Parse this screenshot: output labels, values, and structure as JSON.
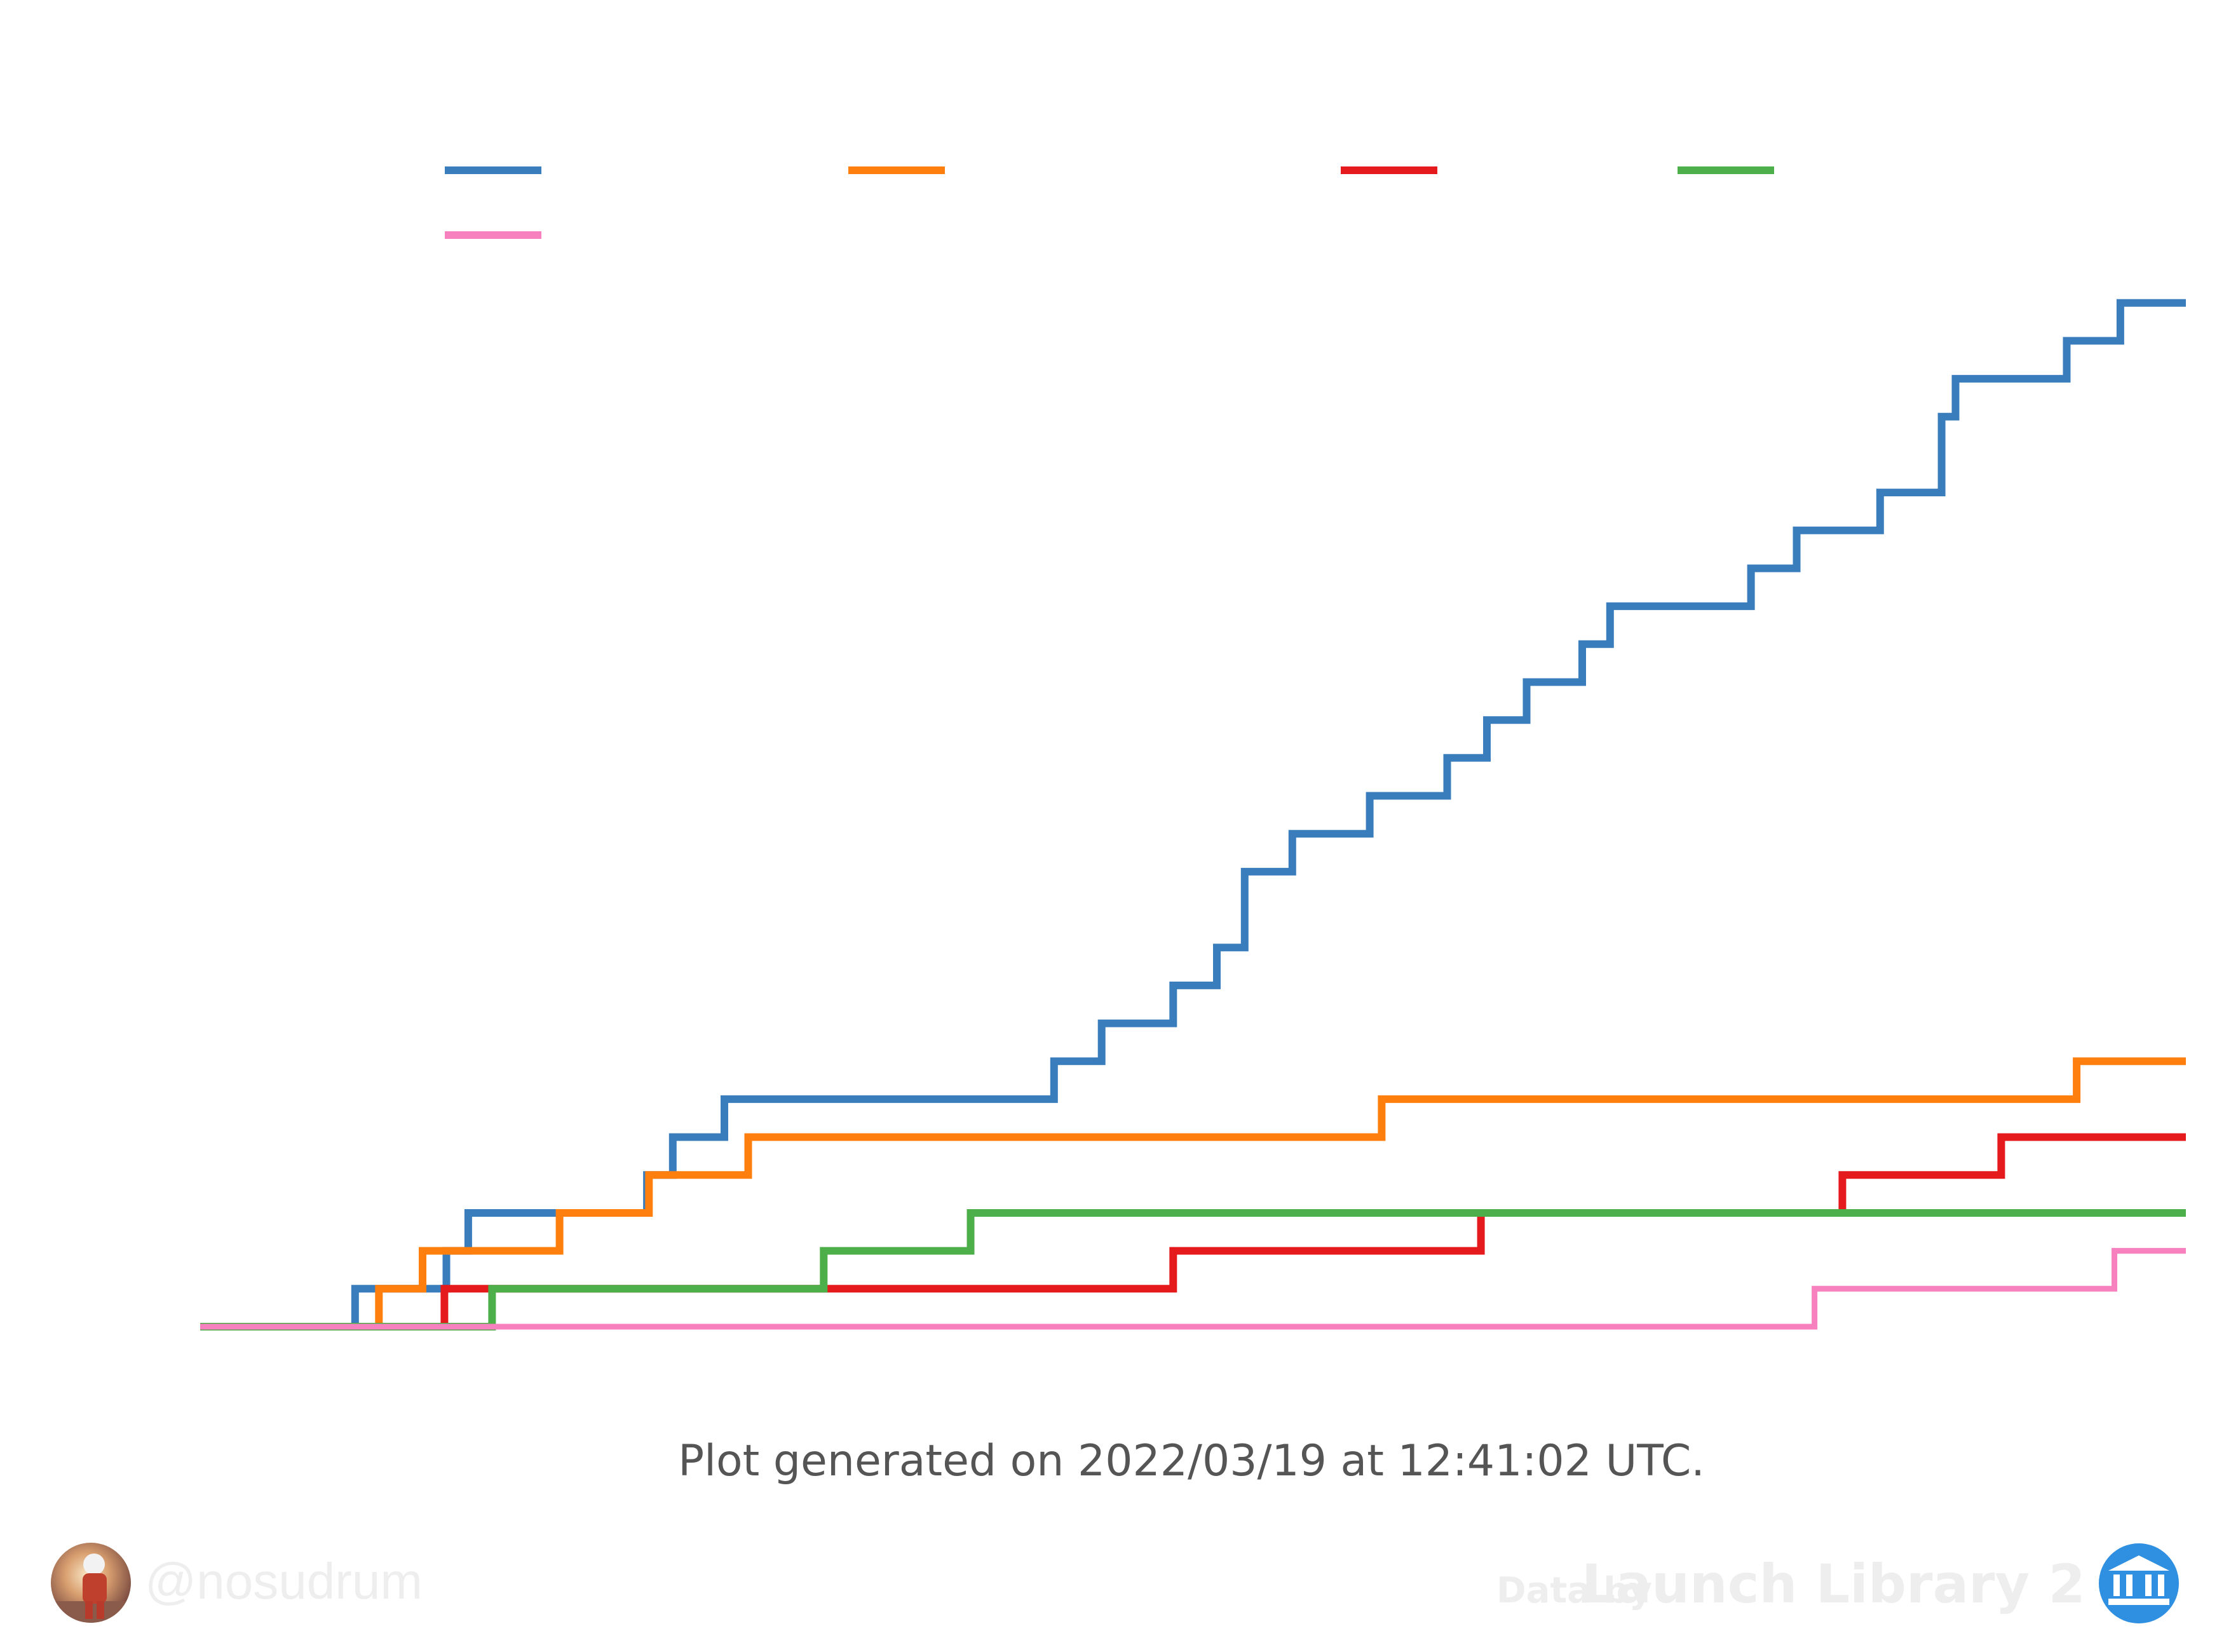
{
  "chart_data": {
    "type": "line",
    "step": true,
    "title": "",
    "xlabel": "",
    "ylabel": "",
    "xlim": [
      0,
      100
    ],
    "ylim": [
      0,
      31
    ],
    "grid": false,
    "legend_position": "top",
    "series": [
      {
        "color": "#3a7dbd",
        "points": [
          [
            0,
            0
          ],
          [
            7.8,
            0
          ],
          [
            7.8,
            1
          ],
          [
            12.4,
            1
          ],
          [
            12.4,
            2
          ],
          [
            13.5,
            2
          ],
          [
            13.5,
            3
          ],
          [
            22.5,
            3
          ],
          [
            22.5,
            4
          ],
          [
            23.8,
            4
          ],
          [
            23.8,
            5
          ],
          [
            26.4,
            5
          ],
          [
            26.4,
            6
          ],
          [
            43,
            6
          ],
          [
            43,
            7
          ],
          [
            45.4,
            7
          ],
          [
            45.4,
            8
          ],
          [
            49.0,
            8
          ],
          [
            49.0,
            9
          ],
          [
            51.2,
            9
          ],
          [
            51.2,
            10
          ],
          [
            52.6,
            10
          ],
          [
            52.6,
            12
          ],
          [
            55.0,
            12
          ],
          [
            55.0,
            13
          ],
          [
            58.9,
            13
          ],
          [
            58.9,
            14
          ],
          [
            62.8,
            14
          ],
          [
            62.8,
            15
          ],
          [
            64.8,
            15
          ],
          [
            64.8,
            16
          ],
          [
            66.8,
            16
          ],
          [
            66.8,
            17
          ],
          [
            69.6,
            17
          ],
          [
            69.6,
            18
          ],
          [
            71.0,
            18
          ],
          [
            71.0,
            19
          ],
          [
            78.1,
            19
          ],
          [
            78.1,
            20
          ],
          [
            80.4,
            20
          ],
          [
            80.4,
            21
          ],
          [
            84.6,
            21
          ],
          [
            84.6,
            22
          ],
          [
            87.7,
            22
          ],
          [
            87.7,
            24
          ],
          [
            88.4,
            24
          ],
          [
            88.4,
            25
          ],
          [
            94.0,
            25
          ],
          [
            94.0,
            26
          ],
          [
            96.7,
            26
          ],
          [
            96.7,
            27
          ],
          [
            100,
            27
          ]
        ]
      },
      {
        "color": "#ff7f0e",
        "points": [
          [
            0,
            0
          ],
          [
            9,
            0
          ],
          [
            9,
            1
          ],
          [
            11.2,
            1
          ],
          [
            11.2,
            2
          ],
          [
            18.1,
            2
          ],
          [
            18.1,
            3
          ],
          [
            22.6,
            3
          ],
          [
            22.6,
            4
          ],
          [
            27.6,
            4
          ],
          [
            27.6,
            5
          ],
          [
            59.5,
            5
          ],
          [
            59.5,
            6
          ],
          [
            94.5,
            6
          ],
          [
            94.5,
            7
          ],
          [
            100,
            7
          ]
        ]
      },
      {
        "color": "#e41a1c",
        "points": [
          [
            0,
            0
          ],
          [
            12.3,
            0
          ],
          [
            12.3,
            1
          ],
          [
            15.6,
            1
          ],
          [
            15.6,
            1
          ],
          [
            49.0,
            1
          ],
          [
            49.0,
            2
          ],
          [
            64.5,
            2
          ],
          [
            64.5,
            3
          ],
          [
            82.7,
            3
          ],
          [
            82.7,
            4
          ],
          [
            90.7,
            4
          ],
          [
            90.7,
            5
          ],
          [
            100,
            5
          ]
        ]
      },
      {
        "color": "#4daf4a",
        "points": [
          [
            0,
            0
          ],
          [
            14.7,
            0
          ],
          [
            14.7,
            1
          ],
          [
            31.4,
            1
          ],
          [
            31.4,
            2
          ],
          [
            38.8,
            2
          ],
          [
            38.8,
            3
          ],
          [
            100,
            3
          ]
        ]
      },
      {
        "color": "#f781bf",
        "points": [
          [
            0,
            0
          ],
          [
            81.3,
            0
          ],
          [
            81.3,
            1
          ],
          [
            96.4,
            1
          ],
          [
            96.4,
            2
          ],
          [
            100,
            2
          ]
        ]
      }
    ]
  },
  "caption": "Plot generated on 2022/03/19 at 12:41:02 UTC.",
  "footer": {
    "handle": "@nosudrum",
    "data_by": "Data by",
    "source": "Launch Library 2",
    "avatar_icon": "astronaut-avatar-icon",
    "source_icon": "library-logo-icon"
  }
}
